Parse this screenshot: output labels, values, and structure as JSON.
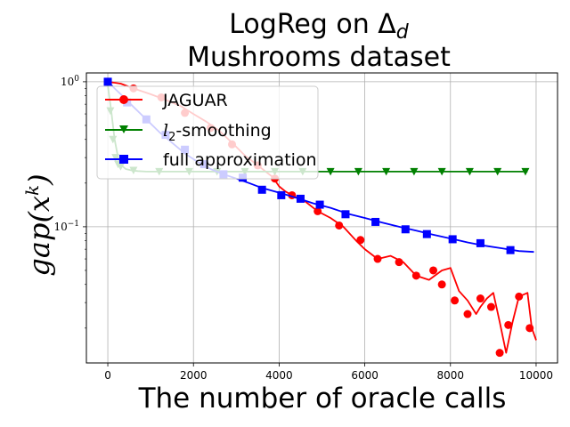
{
  "chart_data": {
    "type": "line",
    "title_line1": "LogReg on Δ",
    "title_sub": "d",
    "title_line2": "Mushrooms dataset",
    "xlabel": "The number of oracle calls",
    "ylabel": "gap(x",
    "ylabel_sup": "k",
    "ylabel_close": ")",
    "xlim": [
      -500,
      10500
    ],
    "ylim": [
      0.0115,
      1.15
    ],
    "yscale": "log",
    "grid": true,
    "legend_position": "upper-left",
    "x_ticks": [
      0,
      2000,
      4000,
      6000,
      8000,
      10000
    ],
    "x_tick_labels": [
      "0",
      "2000",
      "4000",
      "6000",
      "8000",
      "10000"
    ],
    "y_ticks": [
      {
        "value": 1,
        "base": "10",
        "exp": "0"
      },
      {
        "value": 0.1,
        "base": "10",
        "exp": "−1"
      }
    ],
    "series": [
      {
        "name": "JAGUAR",
        "color": "#ff0000",
        "marker": "circle",
        "x": [
          0,
          300,
          600,
          1000,
          1300,
          1700,
          2000,
          2300,
          2600,
          2900,
          3200,
          3500,
          3850,
          4000,
          4150,
          4300,
          4600,
          4900,
          5200,
          5500,
          5800,
          6000,
          6300,
          6600,
          6900,
          7200,
          7500,
          7800,
          8000,
          8200,
          8400,
          8600,
          8700,
          8850,
          9000,
          9150,
          9300,
          9450,
          9600,
          9800,
          9900,
          10000
        ],
        "y": [
          1.0,
          0.97,
          0.9,
          0.82,
          0.76,
          0.68,
          0.6,
          0.53,
          0.46,
          0.38,
          0.31,
          0.265,
          0.22,
          0.19,
          0.175,
          0.165,
          0.15,
          0.128,
          0.115,
          0.1,
          0.08,
          0.07,
          0.06,
          0.063,
          0.057,
          0.046,
          0.043,
          0.05,
          0.052,
          0.036,
          0.031,
          0.025,
          0.028,
          0.032,
          0.035,
          0.022,
          0.0135,
          0.022,
          0.033,
          0.035,
          0.02,
          0.0165
        ],
        "marker_x": [
          0,
          600,
          1250,
          1800,
          2400,
          2900,
          3500,
          3900,
          4300,
          4900,
          5400,
          5900,
          6300,
          6800,
          7200,
          7600,
          7800,
          8100,
          8400,
          8700,
          8950,
          9150,
          9350,
          9600,
          9850
        ],
        "marker_y": [
          1.0,
          0.9,
          0.78,
          0.61,
          0.48,
          0.37,
          0.265,
          0.215,
          0.165,
          0.128,
          0.102,
          0.081,
          0.06,
          0.057,
          0.046,
          0.05,
          0.04,
          0.031,
          0.025,
          0.032,
          0.028,
          0.0135,
          0.021,
          0.033,
          0.02
        ]
      },
      {
        "name": "l₂-smoothing",
        "name_main": "l",
        "name_sub": "2",
        "name_rest": "-smoothing",
        "color": "#008000",
        "marker": "triangle-down",
        "x": [
          0,
          80,
          160,
          240,
          320,
          420,
          550,
          700,
          900,
          1200,
          1600,
          2000,
          2600,
          3200,
          3800,
          4400,
          5000,
          5600,
          6200,
          6800,
          7400,
          8000,
          8600,
          9200,
          9800
        ],
        "y": [
          0.95,
          0.63,
          0.4,
          0.3,
          0.265,
          0.25,
          0.245,
          0.242,
          0.24,
          0.24,
          0.24,
          0.24,
          0.24,
          0.24,
          0.24,
          0.24,
          0.24,
          0.24,
          0.24,
          0.24,
          0.24,
          0.24,
          0.24,
          0.24,
          0.24
        ],
        "marker_x": [
          0,
          60,
          120,
          180,
          240,
          300,
          600,
          1200,
          1900,
          2550,
          3200,
          3900,
          4550,
          5200,
          5850,
          6500,
          7150,
          7800,
          8450,
          9100,
          9750
        ],
        "marker_y": [
          0.97,
          0.63,
          0.4,
          0.3,
          0.27,
          0.26,
          0.245,
          0.24,
          0.24,
          0.24,
          0.24,
          0.24,
          0.24,
          0.24,
          0.24,
          0.24,
          0.24,
          0.24,
          0.24,
          0.24,
          0.24
        ]
      },
      {
        "name": "full approximation",
        "color": "#0000ff",
        "marker": "square",
        "x": [
          0,
          300,
          600,
          900,
          1200,
          1500,
          1800,
          2100,
          2400,
          2700,
          3000,
          3300,
          3600,
          3900,
          4200,
          4500,
          4800,
          5200,
          5600,
          6000,
          6400,
          6800,
          7200,
          7600,
          8000,
          8400,
          8800,
          9200,
          9600,
          9950
        ],
        "y": [
          1.0,
          0.82,
          0.67,
          0.55,
          0.45,
          0.38,
          0.32,
          0.28,
          0.25,
          0.23,
          0.215,
          0.2,
          0.185,
          0.175,
          0.165,
          0.155,
          0.145,
          0.135,
          0.123,
          0.115,
          0.107,
          0.1,
          0.094,
          0.088,
          0.083,
          0.078,
          0.074,
          0.071,
          0.068,
          0.067
        ],
        "marker_x": [
          0,
          450,
          900,
          1350,
          1800,
          2250,
          2700,
          3150,
          3600,
          4050,
          4500,
          4950,
          5550,
          6250,
          6950,
          7450,
          8050,
          8700,
          9400
        ],
        "marker_y": [
          1.0,
          0.72,
          0.55,
          0.43,
          0.34,
          0.27,
          0.23,
          0.218,
          0.18,
          0.165,
          0.156,
          0.142,
          0.122,
          0.108,
          0.096,
          0.089,
          0.082,
          0.077,
          0.069
        ]
      }
    ]
  }
}
